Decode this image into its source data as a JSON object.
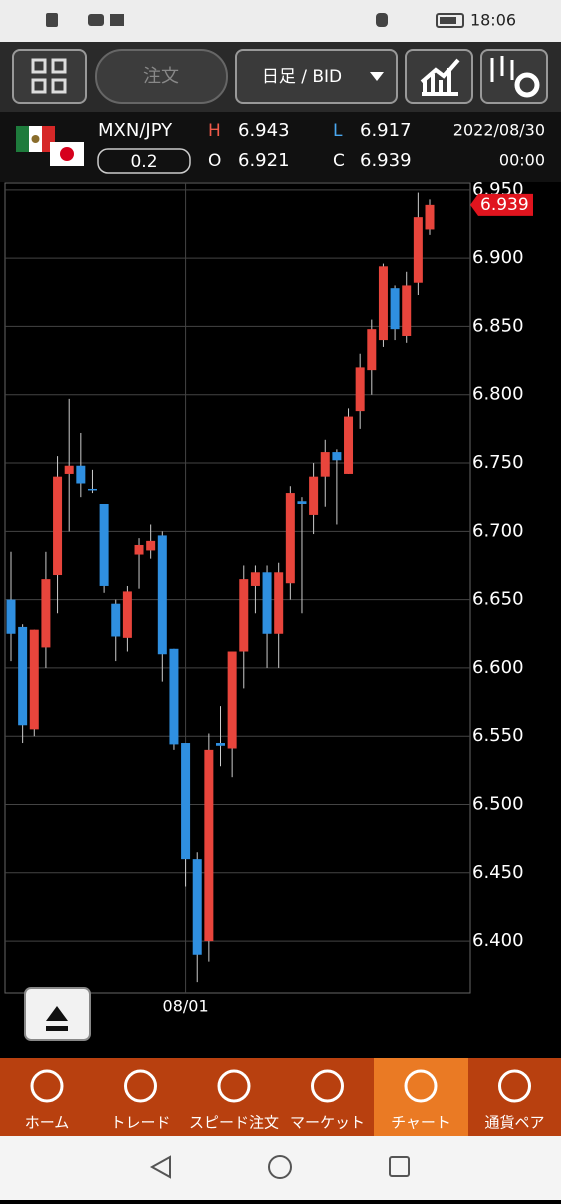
{
  "status_bar": {
    "time": "18:06"
  },
  "toolbar": {
    "order": "注文",
    "period": "日足 / BID"
  },
  "quote": {
    "symbol": "MXN/JPY",
    "spread": "0.2",
    "high_label": "H",
    "high": "6.943",
    "low_label": "L",
    "low": "6.917",
    "open_label": "O",
    "open": "6.921",
    "close_label": "C",
    "close": "6.939",
    "date": "2022/08/30",
    "time": "00:00"
  },
  "chart_data": {
    "type": "candlestick",
    "categories": [
      null,
      null,
      null,
      null,
      null,
      null,
      null,
      null,
      null,
      null,
      null,
      null,
      null,
      null,
      null,
      "08/01",
      null,
      null,
      null,
      null,
      null,
      null,
      null,
      null,
      null,
      null,
      null,
      null,
      null,
      null,
      null,
      null,
      null,
      null,
      null,
      null,
      null
    ],
    "open": [
      6.65,
      6.63,
      6.555,
      6.615,
      6.668,
      6.742,
      6.748,
      6.731,
      6.72,
      6.647,
      6.622,
      6.683,
      6.686,
      6.697,
      6.614,
      6.545,
      6.46,
      6.4,
      6.545,
      6.541,
      6.612,
      6.66,
      6.67,
      6.625,
      6.662,
      6.722,
      6.712,
      6.74,
      6.758,
      6.742,
      6.788,
      6.818,
      6.84,
      6.878,
      6.843,
      6.882,
      6.921
    ],
    "high": [
      6.685,
      6.632,
      6.628,
      6.685,
      6.755,
      6.797,
      6.772,
      6.745,
      6.72,
      6.65,
      6.66,
      6.695,
      6.705,
      6.7,
      6.614,
      6.545,
      6.465,
      6.552,
      6.572,
      6.612,
      6.675,
      6.675,
      6.675,
      6.677,
      6.733,
      6.725,
      6.75,
      6.767,
      6.76,
      6.79,
      6.83,
      6.855,
      6.896,
      6.88,
      6.89,
      6.948,
      6.943
    ],
    "low": [
      6.605,
      6.545,
      6.55,
      6.6,
      6.64,
      6.7,
      6.725,
      6.728,
      6.655,
      6.605,
      6.612,
      6.658,
      6.68,
      6.59,
      6.54,
      6.44,
      6.37,
      6.385,
      6.528,
      6.52,
      6.585,
      6.64,
      6.6,
      6.6,
      6.65,
      6.64,
      6.698,
      6.718,
      6.705,
      6.742,
      6.775,
      6.8,
      6.835,
      6.84,
      6.838,
      6.873,
      6.917
    ],
    "close": [
      6.625,
      6.558,
      6.628,
      6.665,
      6.74,
      6.748,
      6.735,
      6.73,
      6.66,
      6.623,
      6.656,
      6.69,
      6.693,
      6.61,
      6.544,
      6.46,
      6.39,
      6.54,
      6.543,
      6.612,
      6.665,
      6.67,
      6.625,
      6.67,
      6.728,
      6.72,
      6.74,
      6.758,
      6.752,
      6.784,
      6.82,
      6.848,
      6.894,
      6.848,
      6.88,
      6.93,
      6.939
    ],
    "up_color": "#e8453c",
    "down_color": "#2f8fe0",
    "ylim": [
      6.362,
      6.955
    ],
    "yticks": [
      {
        "value": 6.4,
        "label": "6.400"
      },
      {
        "value": 6.45,
        "label": "6.450"
      },
      {
        "value": 6.5,
        "label": "6.500"
      },
      {
        "value": 6.55,
        "label": "6.550"
      },
      {
        "value": 6.6,
        "label": "6.600"
      },
      {
        "value": 6.65,
        "label": "6.650"
      },
      {
        "value": 6.7,
        "label": "6.700"
      },
      {
        "value": 6.75,
        "label": "6.750"
      },
      {
        "value": 6.8,
        "label": "6.800"
      },
      {
        "value": 6.85,
        "label": "6.850"
      },
      {
        "value": 6.9,
        "label": "6.900"
      },
      {
        "value": 6.95,
        "label": "6.950"
      }
    ],
    "grid": true,
    "last_price": 6.939
  },
  "nav": [
    "ホーム",
    "トレード",
    "スピード注文",
    "マーケット",
    "チャート",
    "通貨ペア"
  ]
}
